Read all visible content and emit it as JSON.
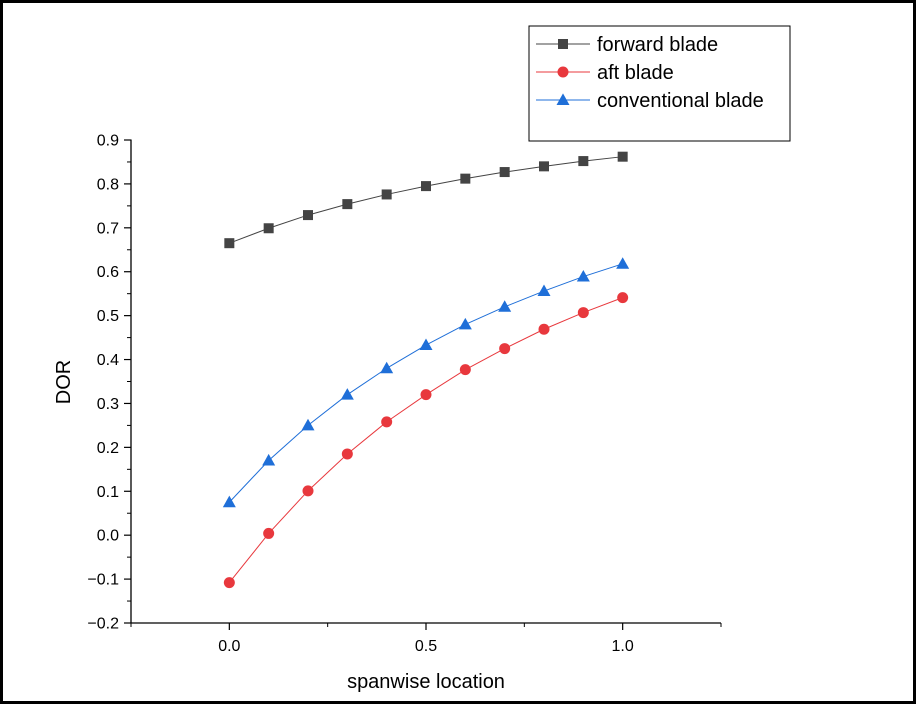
{
  "chart_data": {
    "type": "line",
    "title": "",
    "xlabel": "spanwise location",
    "ylabel": "DOR",
    "xlim": [
      -0.25,
      1.25
    ],
    "ylim": [
      -0.2,
      0.9
    ],
    "x_ticks": [
      0.0,
      0.5,
      1.0
    ],
    "x_tick_labels": [
      "0.0",
      "0.5",
      "1.0"
    ],
    "y_ticks": [
      -0.2,
      -0.1,
      0.0,
      0.1,
      0.2,
      0.3,
      0.4,
      0.5,
      0.6,
      0.7,
      0.8,
      0.9
    ],
    "y_tick_labels": [
      "−0.2",
      "−0.1",
      "0.0",
      "0.1",
      "0.2",
      "0.3",
      "0.4",
      "0.5",
      "0.6",
      "0.7",
      "0.8",
      "0.9"
    ],
    "grid": false,
    "legend_position": "top-right",
    "x": [
      0.0,
      0.1,
      0.2,
      0.3,
      0.4,
      0.5,
      0.6,
      0.7,
      0.8,
      0.9,
      1.0
    ],
    "series": [
      {
        "name": "forward blade",
        "marker": "square",
        "color": "#444444",
        "values": [
          0.665,
          0.699,
          0.729,
          0.754,
          0.776,
          0.795,
          0.812,
          0.827,
          0.84,
          0.852,
          0.862
        ]
      },
      {
        "name": "aft blade",
        "marker": "circle",
        "color": "#e8383d",
        "values": [
          -0.108,
          0.004,
          0.101,
          0.185,
          0.258,
          0.32,
          0.377,
          0.425,
          0.469,
          0.507,
          0.541
        ]
      },
      {
        "name": "conventional blade",
        "marker": "triangle",
        "color": "#1f6fd8",
        "values": [
          0.075,
          0.17,
          0.25,
          0.32,
          0.38,
          0.433,
          0.48,
          0.52,
          0.556,
          0.589,
          0.618
        ]
      }
    ]
  }
}
